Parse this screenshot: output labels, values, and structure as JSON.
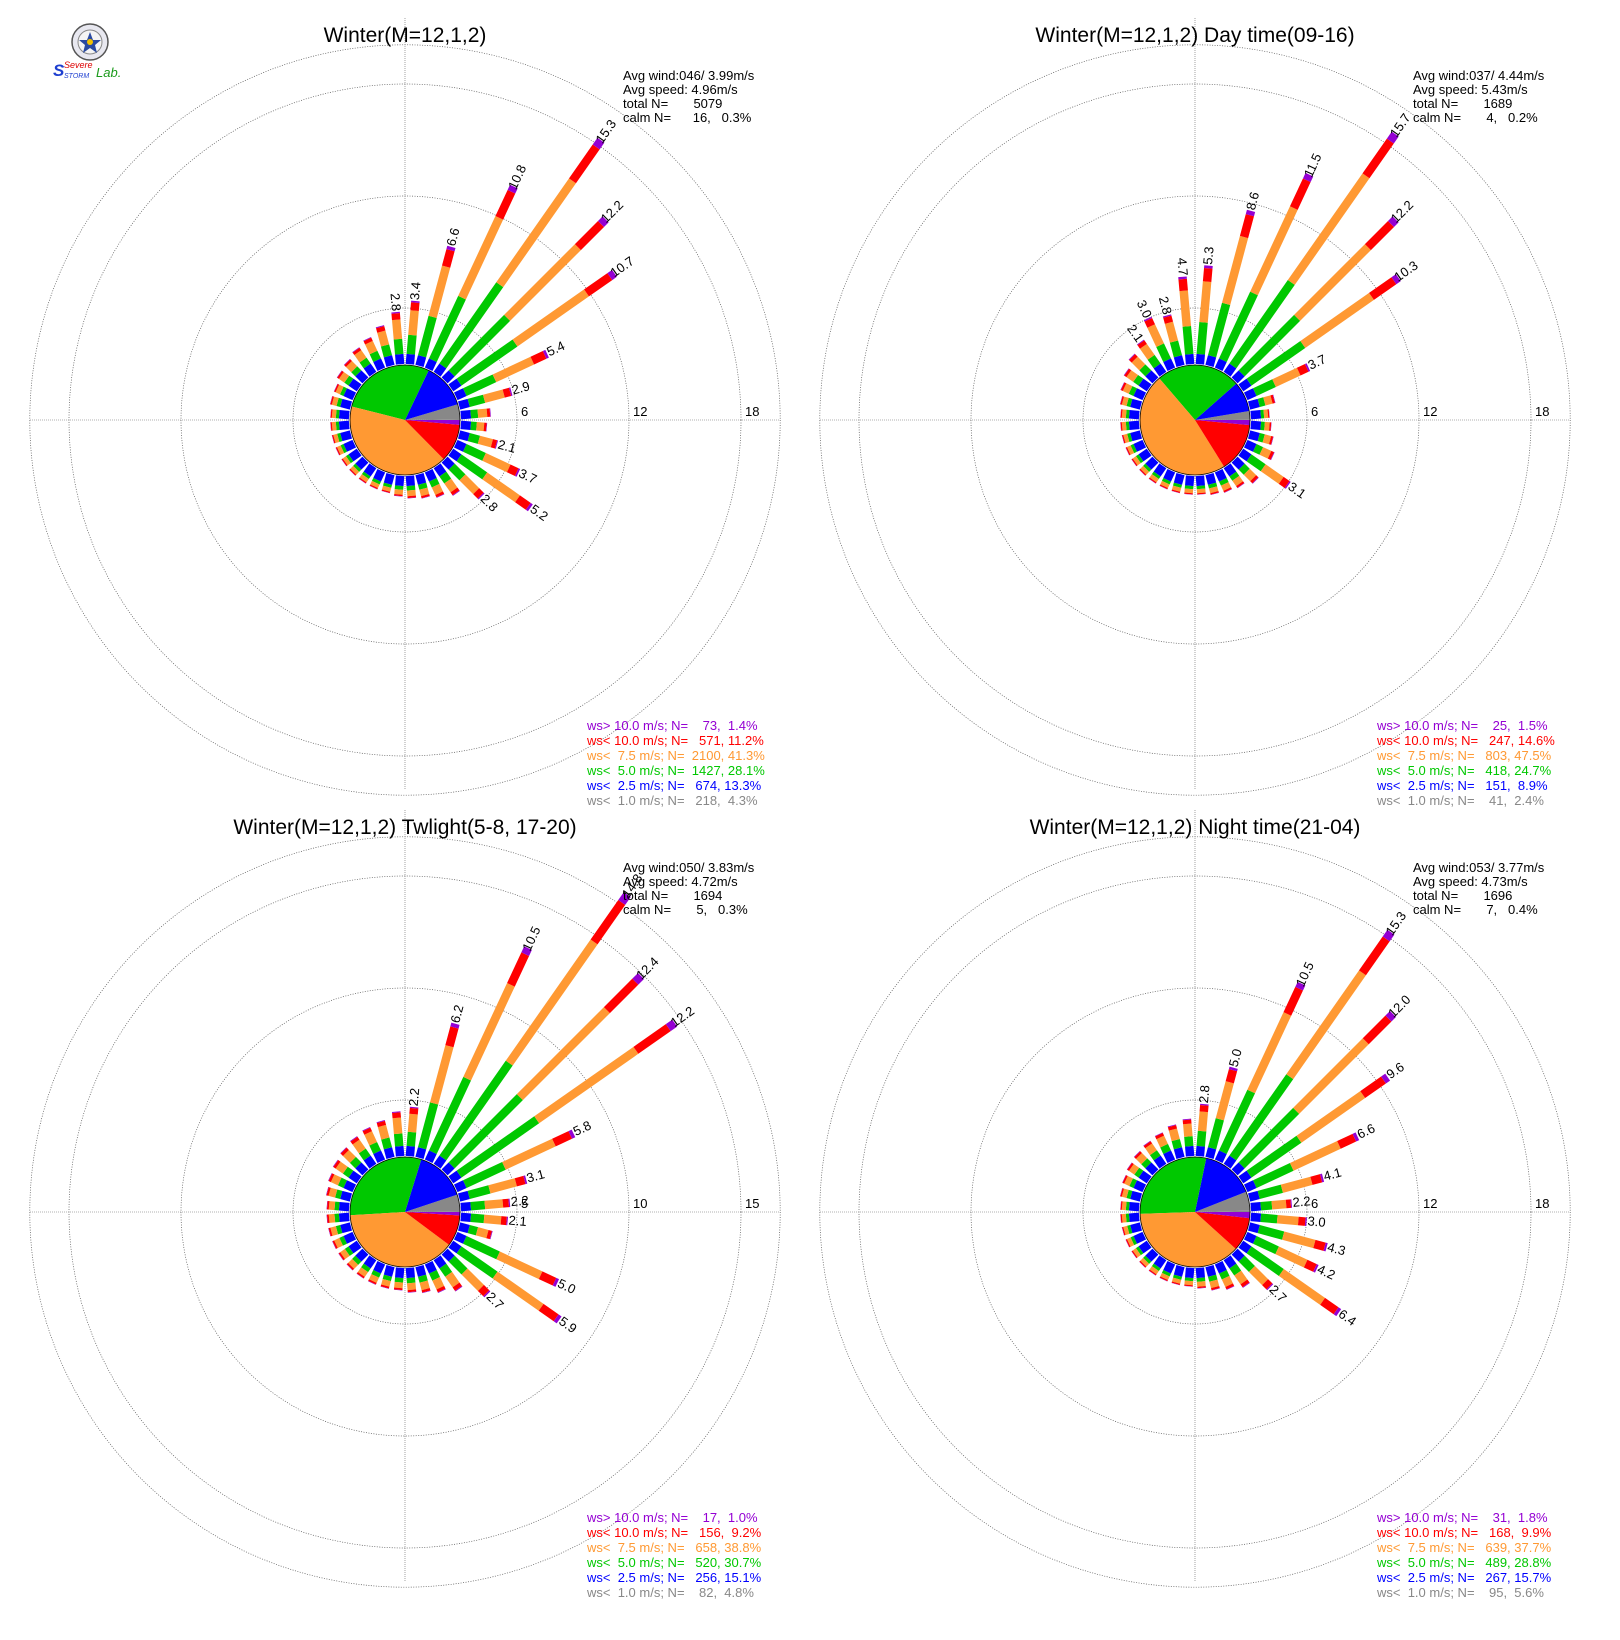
{
  "colors": {
    "gt10": "#9400d3",
    "lt10": "#ff0000",
    "lt75": "#ff9933",
    "lt50": "#00c800",
    "lt25": "#0000ff",
    "lt10calm": "#888888"
  },
  "logo": {
    "text": "SevereStorm Lab."
  },
  "chart_data": [
    {
      "type": "polar-bar",
      "title": "Winter(M=12,1,2)",
      "stats": [
        "Avg wind:046/ 3.99m/s",
        "Avg speed: 4.96m/s",
        "total N=       5079",
        "calm N=      16,   0.3%"
      ],
      "rings": [
        6,
        12,
        18
      ],
      "ring_labels": [
        "6",
        "12",
        "18"
      ],
      "bins": 36,
      "values": [
        3.4,
        6.6,
        10.8,
        15.3,
        12.2,
        10.7,
        5.4,
        2.9,
        1.6,
        1.4,
        2.1,
        3.7,
        5.2,
        2.8,
        1.8,
        1.5,
        1.3,
        1.2,
        1.1,
        1.0,
        1.0,
        1.0,
        1.0,
        1.0,
        1.0,
        1.0,
        1.0,
        1.0,
        1.1,
        1.1,
        1.3,
        1.4,
        1.6,
        1.8,
        2.2,
        2.8
      ],
      "bar_labels": [
        [
          0,
          "3.4"
        ],
        [
          1,
          "6.6"
        ],
        [
          2,
          "10.8"
        ],
        [
          3,
          "15.3"
        ],
        [
          4,
          "12.2"
        ],
        [
          5,
          "10.7"
        ],
        [
          6,
          "5.4"
        ],
        [
          7,
          "2.9"
        ],
        [
          10,
          "2.1"
        ],
        [
          11,
          "3.7"
        ],
        [
          12,
          "5.2"
        ],
        [
          13,
          "2.8"
        ],
        [
          35,
          "2.8"
        ]
      ],
      "pie": [
        0.3,
        4.3,
        13.3,
        28.1,
        41.3,
        11.2,
        1.4
      ],
      "legend": [
        {
          "key": "gt10",
          "text": "ws> 10.0 m/s; N=    73,  1.4%"
        },
        {
          "key": "lt10",
          "text": "ws< 10.0 m/s; N=   571, 11.2%"
        },
        {
          "key": "lt75",
          "text": "ws<  7.5 m/s; N=  2100, 41.3%"
        },
        {
          "key": "lt50",
          "text": "ws<  5.0 m/s; N=  1427, 28.1%"
        },
        {
          "key": "lt25",
          "text": "ws<  2.5 m/s; N=   674, 13.3%"
        },
        {
          "key": "lt10calm",
          "text": "ws<  1.0 m/s; N=   218,  4.3%"
        }
      ]
    },
    {
      "type": "polar-bar",
      "title": "Winter(M=12,1,2) Day time(09-16)",
      "stats": [
        "Avg wind:037/ 4.44m/s",
        "Avg speed: 5.43m/s",
        "total N=       1689",
        "calm N=       4,   0.2%"
      ],
      "rings": [
        6,
        12,
        18
      ],
      "ring_labels": [
        "6",
        "12",
        "18"
      ],
      "bins": 36,
      "values": [
        5.3,
        8.6,
        11.5,
        15.7,
        12.2,
        10.3,
        3.7,
        1.4,
        1.0,
        1.1,
        1.3,
        1.6,
        3.1,
        1.6,
        1.3,
        1.2,
        1.1,
        1.0,
        1.0,
        1.0,
        1.0,
        1.0,
        1.0,
        1.0,
        1.0,
        1.0,
        1.0,
        1.0,
        1.1,
        1.3,
        1.5,
        1.8,
        2.1,
        3.0,
        2.8,
        4.7
      ],
      "bar_labels": [
        [
          0,
          "5.3"
        ],
        [
          1,
          "8.6"
        ],
        [
          2,
          "11.5"
        ],
        [
          3,
          "15.7"
        ],
        [
          4,
          "12.2"
        ],
        [
          5,
          "10.3"
        ],
        [
          6,
          "3.7"
        ],
        [
          12,
          "3.1"
        ],
        [
          32,
          "2.1"
        ],
        [
          33,
          "3.0"
        ],
        [
          34,
          "2.8"
        ],
        [
          35,
          "4.7"
        ]
      ],
      "pie": [
        0.2,
        2.4,
        8.9,
        24.7,
        47.5,
        14.6,
        1.5
      ],
      "legend": [
        {
          "key": "gt10",
          "text": "ws> 10.0 m/s; N=    25,  1.5%"
        },
        {
          "key": "lt10",
          "text": "ws< 10.0 m/s; N=   247, 14.6%"
        },
        {
          "key": "lt75",
          "text": "ws<  7.5 m/s; N=   803, 47.5%"
        },
        {
          "key": "lt50",
          "text": "ws<  5.0 m/s; N=   418, 24.7%"
        },
        {
          "key": "lt25",
          "text": "ws<  2.5 m/s; N=   151,  8.9%"
        },
        {
          "key": "lt10calm",
          "text": "ws<  1.0 m/s; N=    41,  2.4%"
        }
      ]
    },
    {
      "type": "polar-bar",
      "title": "Winter(M=12,1,2) Twlight(5-8, 17-20)",
      "stats": [
        "Avg wind:050/ 3.83m/s",
        "Avg speed: 4.72m/s",
        "total N=       1694",
        "calm N=       5,   0.3%"
      ],
      "rings": [
        5,
        10,
        15
      ],
      "ring_labels": [
        "5",
        "10",
        "15"
      ],
      "bins": 36,
      "values": [
        2.2,
        6.2,
        10.5,
        14.8,
        12.4,
        12.2,
        5.8,
        3.1,
        2.2,
        2.1,
        1.5,
        5.0,
        5.9,
        2.7,
        1.7,
        1.4,
        1.2,
        1.1,
        1.0,
        1.0,
        1.0,
        1.0,
        1.0,
        1.0,
        1.0,
        1.0,
        1.0,
        1.0,
        1.1,
        1.2,
        1.3,
        1.4,
        1.5,
        1.6,
        1.7,
        2.0
      ],
      "bar_labels": [
        [
          0,
          "2.2"
        ],
        [
          1,
          "6.2"
        ],
        [
          2,
          "10.5"
        ],
        [
          3,
          "14.8"
        ],
        [
          4,
          "12.4"
        ],
        [
          5,
          "12.2"
        ],
        [
          6,
          "5.8"
        ],
        [
          7,
          "3.1"
        ],
        [
          8,
          "2.2"
        ],
        [
          9,
          "2.1"
        ],
        [
          11,
          "5.0"
        ],
        [
          12,
          "5.9"
        ],
        [
          13,
          "2.7"
        ]
      ],
      "pie": [
        0.3,
        4.8,
        15.1,
        30.7,
        38.8,
        9.2,
        1.0
      ],
      "legend": [
        {
          "key": "gt10",
          "text": "ws> 10.0 m/s; N=    17,  1.0%"
        },
        {
          "key": "lt10",
          "text": "ws< 10.0 m/s; N=   156,  9.2%"
        },
        {
          "key": "lt75",
          "text": "ws<  7.5 m/s; N=   658, 38.8%"
        },
        {
          "key": "lt50",
          "text": "ws<  5.0 m/s; N=   520, 30.7%"
        },
        {
          "key": "lt25",
          "text": "ws<  2.5 m/s; N=   256, 15.1%"
        },
        {
          "key": "lt10calm",
          "text": "ws<  1.0 m/s; N=    82,  4.8%"
        }
      ]
    },
    {
      "type": "polar-bar",
      "title": "Winter(M=12,1,2) Night time(21-04)",
      "stats": [
        "Avg wind:053/ 3.77m/s",
        "Avg speed: 4.73m/s",
        "total N=       1696",
        "calm N=       7,   0.4%"
      ],
      "rings": [
        6,
        12,
        18
      ],
      "ring_labels": [
        "6",
        "12",
        "18"
      ],
      "bins": 36,
      "values": [
        2.8,
        5.0,
        10.5,
        15.3,
        12.0,
        9.6,
        6.6,
        4.1,
        2.2,
        3.0,
        4.3,
        4.2,
        6.4,
        2.7,
        1.8,
        1.5,
        1.3,
        1.1,
        1.0,
        1.0,
        1.0,
        1.0,
        1.0,
        1.0,
        1.0,
        1.0,
        1.0,
        1.0,
        1.1,
        1.2,
        1.3,
        1.4,
        1.5,
        1.6,
        1.8,
        2.0
      ],
      "bar_labels": [
        [
          0,
          "2.8"
        ],
        [
          1,
          "5.0"
        ],
        [
          2,
          "10.5"
        ],
        [
          3,
          "15.3"
        ],
        [
          4,
          "12.0"
        ],
        [
          5,
          "9.6"
        ],
        [
          6,
          "6.6"
        ],
        [
          7,
          "4.1"
        ],
        [
          8,
          "2.2"
        ],
        [
          9,
          "3.0"
        ],
        [
          10,
          "4.3"
        ],
        [
          11,
          "4.2"
        ],
        [
          12,
          "6.4"
        ],
        [
          13,
          "2.7"
        ]
      ],
      "pie": [
        0.4,
        5.6,
        15.7,
        28.8,
        37.7,
        9.9,
        1.8
      ],
      "legend": [
        {
          "key": "gt10",
          "text": "ws> 10.0 m/s; N=    31,  1.8%"
        },
        {
          "key": "lt10",
          "text": "ws< 10.0 m/s; N=   168,  9.9%"
        },
        {
          "key": "lt75",
          "text": "ws<  7.5 m/s; N=   639, 37.7%"
        },
        {
          "key": "lt50",
          "text": "ws<  5.0 m/s; N=   489, 28.8%"
        },
        {
          "key": "lt25",
          "text": "ws<  2.5 m/s; N=   267, 15.7%"
        },
        {
          "key": "lt10calm",
          "text": "ws<  1.0 m/s; N=    95,  5.6%"
        }
      ]
    }
  ]
}
